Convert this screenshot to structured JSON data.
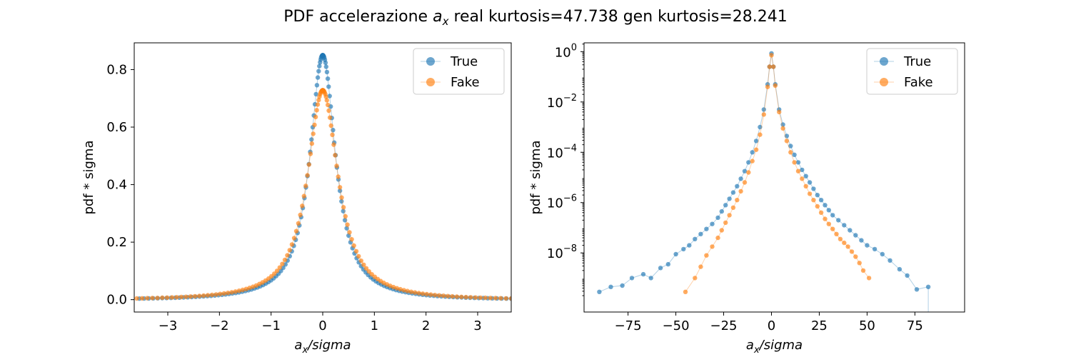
{
  "figure": {
    "title_prefix": "PDF accelerazione ",
    "title_symbol": "a",
    "title_subscript": "x",
    "title_suffix": " real kurtosis=47.738    gen kurtosis=28.241"
  },
  "colors": {
    "true": "#1f77b4",
    "fake": "#ff7f0e"
  },
  "chart_data": [
    {
      "type": "scatter",
      "id": "linear",
      "yscale": "linear",
      "xlabel_symbol": "a",
      "xlabel_sub": "x",
      "xlabel_rest": "/sigma",
      "ylabel": "pdf * sigma",
      "xlim": [
        -3.65,
        3.65
      ],
      "ylim": [
        -0.043,
        0.893
      ],
      "xticks": [
        -3,
        -2,
        -1,
        0,
        1,
        2,
        3
      ],
      "xtick_labels": [
        "−3",
        "−2",
        "−1",
        "0",
        "1",
        "2",
        "3"
      ],
      "yticks": [
        0.0,
        0.2,
        0.4,
        0.6,
        0.8
      ],
      "ytick_labels": [
        "0.0",
        "0.2",
        "0.4",
        "0.6",
        "0.8"
      ],
      "legend": {
        "position": "upper right",
        "entries": [
          "True",
          "Fake"
        ]
      },
      "series": [
        {
          "name": "True",
          "peak": 0.85,
          "gamma": 0.3,
          "x_range": [
            -3.55,
            3.65
          ],
          "n": 149,
          "taper": true
        },
        {
          "name": "Fake",
          "peak": 0.728,
          "gamma": 0.36,
          "x_range": [
            -3.6,
            3.65
          ],
          "n": 135,
          "taper": true
        }
      ]
    },
    {
      "type": "scatter",
      "id": "log",
      "yscale": "log",
      "xlabel_symbol": "a",
      "xlabel_sub": "x",
      "xlabel_rest": "/sigma",
      "ylabel": "pdf * sigma",
      "xlim": [
        -98,
        101
      ],
      "ylim_log10": [
        -10.35,
        0.35
      ],
      "xticks": [
        -75,
        -50,
        -25,
        0,
        25,
        50,
        75
      ],
      "xtick_labels": [
        "−75",
        "−50",
        "−25",
        "0",
        "25",
        "50",
        "75"
      ],
      "yticks_log10": [
        0,
        -2,
        -4,
        -6,
        -8
      ],
      "ytick_labels": [
        "0",
        "−2",
        "−4",
        "−6",
        "−8"
      ],
      "ytick_base": "10",
      "legend": {
        "position": "upper right",
        "entries": [
          "True",
          "Fake"
        ]
      },
      "series": [
        {
          "name": "True",
          "points": [
            [
              -90,
              -9.55
            ],
            [
              -84,
              -9.35
            ],
            [
              -78,
              -9.3
            ],
            [
              -73,
              -9.0
            ],
            [
              -67,
              -8.85
            ],
            [
              -63,
              -9.0
            ],
            [
              -58,
              -8.6
            ],
            [
              -54,
              -8.45
            ],
            [
              -50,
              -8.05
            ],
            [
              -46,
              -7.85
            ],
            [
              -43,
              -7.7
            ],
            [
              -40,
              -7.45
            ],
            [
              -37,
              -7.25
            ],
            [
              -34,
              -7.05
            ],
            [
              -31,
              -6.85
            ],
            [
              -28,
              -6.6
            ],
            [
              -26,
              -6.35
            ],
            [
              -24,
              -6.1
            ],
            [
              -22,
              -5.85
            ],
            [
              -20,
              -5.6
            ],
            [
              -18,
              -5.35
            ],
            [
              -16,
              -5.05
            ],
            [
              -14,
              -4.75
            ],
            [
              -12,
              -4.4
            ],
            [
              -10,
              -4.0
            ],
            [
              -8,
              -3.55
            ],
            [
              -6,
              -3.0
            ],
            [
              -4,
              -2.3
            ],
            [
              -2,
              -1.3
            ],
            [
              -1,
              -0.6
            ],
            [
              0,
              -0.07
            ],
            [
              1,
              -0.6
            ],
            [
              2,
              -1.3
            ],
            [
              4,
              -2.3
            ],
            [
              6,
              -2.9
            ],
            [
              8,
              -3.35
            ],
            [
              10,
              -3.75
            ],
            [
              12,
              -4.1
            ],
            [
              14,
              -4.4
            ],
            [
              16,
              -4.7
            ],
            [
              18,
              -4.95
            ],
            [
              20,
              -5.2
            ],
            [
              22,
              -5.45
            ],
            [
              24,
              -5.7
            ],
            [
              26,
              -5.9
            ],
            [
              28,
              -6.1
            ],
            [
              30,
              -6.3
            ],
            [
              32,
              -6.5
            ],
            [
              35,
              -6.7
            ],
            [
              38,
              -6.9
            ],
            [
              41,
              -7.1
            ],
            [
              44,
              -7.3
            ],
            [
              47,
              -7.5
            ],
            [
              50,
              -7.7
            ],
            [
              54,
              -7.85
            ],
            [
              58,
              -8.05
            ],
            [
              62,
              -8.3
            ],
            [
              67,
              -8.65
            ],
            [
              71,
              -8.9
            ],
            [
              76,
              -9.45
            ],
            [
              82,
              -9.35
            ]
          ]
        },
        {
          "name": "Fake",
          "points": [
            [
              -45,
              -9.55
            ],
            [
              -40,
              -9.0
            ],
            [
              -37,
              -8.55
            ],
            [
              -34,
              -8.1
            ],
            [
              -31,
              -7.75
            ],
            [
              -28,
              -7.4
            ],
            [
              -26,
              -7.1
            ],
            [
              -24,
              -6.8
            ],
            [
              -22,
              -6.5
            ],
            [
              -20,
              -6.2
            ],
            [
              -18,
              -5.9
            ],
            [
              -16,
              -5.55
            ],
            [
              -14,
              -5.2
            ],
            [
              -12,
              -4.8
            ],
            [
              -10,
              -4.35
            ],
            [
              -8,
              -3.9
            ],
            [
              -6,
              -3.3
            ],
            [
              -4,
              -2.5
            ],
            [
              -2,
              -1.4
            ],
            [
              -1,
              -0.6
            ],
            [
              0,
              -0.14
            ],
            [
              1,
              -0.6
            ],
            [
              2,
              -1.35
            ],
            [
              4,
              -2.4
            ],
            [
              6,
              -3.05
            ],
            [
              8,
              -3.55
            ],
            [
              10,
              -4.0
            ],
            [
              12,
              -4.4
            ],
            [
              14,
              -4.75
            ],
            [
              16,
              -5.05
            ],
            [
              18,
              -5.35
            ],
            [
              20,
              -5.65
            ],
            [
              22,
              -5.9
            ],
            [
              24,
              -6.15
            ],
            [
              26,
              -6.4
            ],
            [
              28,
              -6.65
            ],
            [
              30,
              -6.85
            ],
            [
              32,
              -7.05
            ],
            [
              34,
              -7.25
            ],
            [
              36,
              -7.45
            ],
            [
              38,
              -7.6
            ],
            [
              40,
              -7.75
            ],
            [
              42,
              -7.95
            ],
            [
              44,
              -8.15
            ],
            [
              46,
              -8.4
            ],
            [
              48,
              -8.7
            ],
            [
              51,
              -9.0
            ]
          ]
        }
      ]
    }
  ]
}
